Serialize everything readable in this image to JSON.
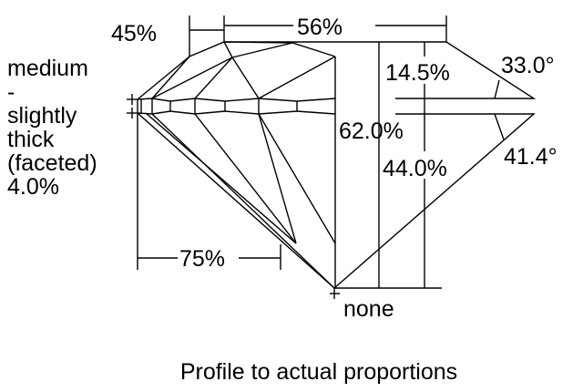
{
  "diagram": {
    "caption": "Profile to actual proportions",
    "labels": {
      "crown_angle_pct": "45%",
      "table_pct": "56%",
      "crown_height": "14.5%",
      "crown_angle": "33.0°",
      "total_depth": "62.0%",
      "pavilion_depth": "44.0%",
      "pavilion_angle": "41.4°",
      "lower_half": "75%",
      "culet": "none"
    },
    "girdle": [
      "medium",
      "-",
      "slightly",
      "thick",
      "(faceted)",
      "4.0%"
    ],
    "stroke_color": "#000000",
    "background": "#ffffff"
  }
}
